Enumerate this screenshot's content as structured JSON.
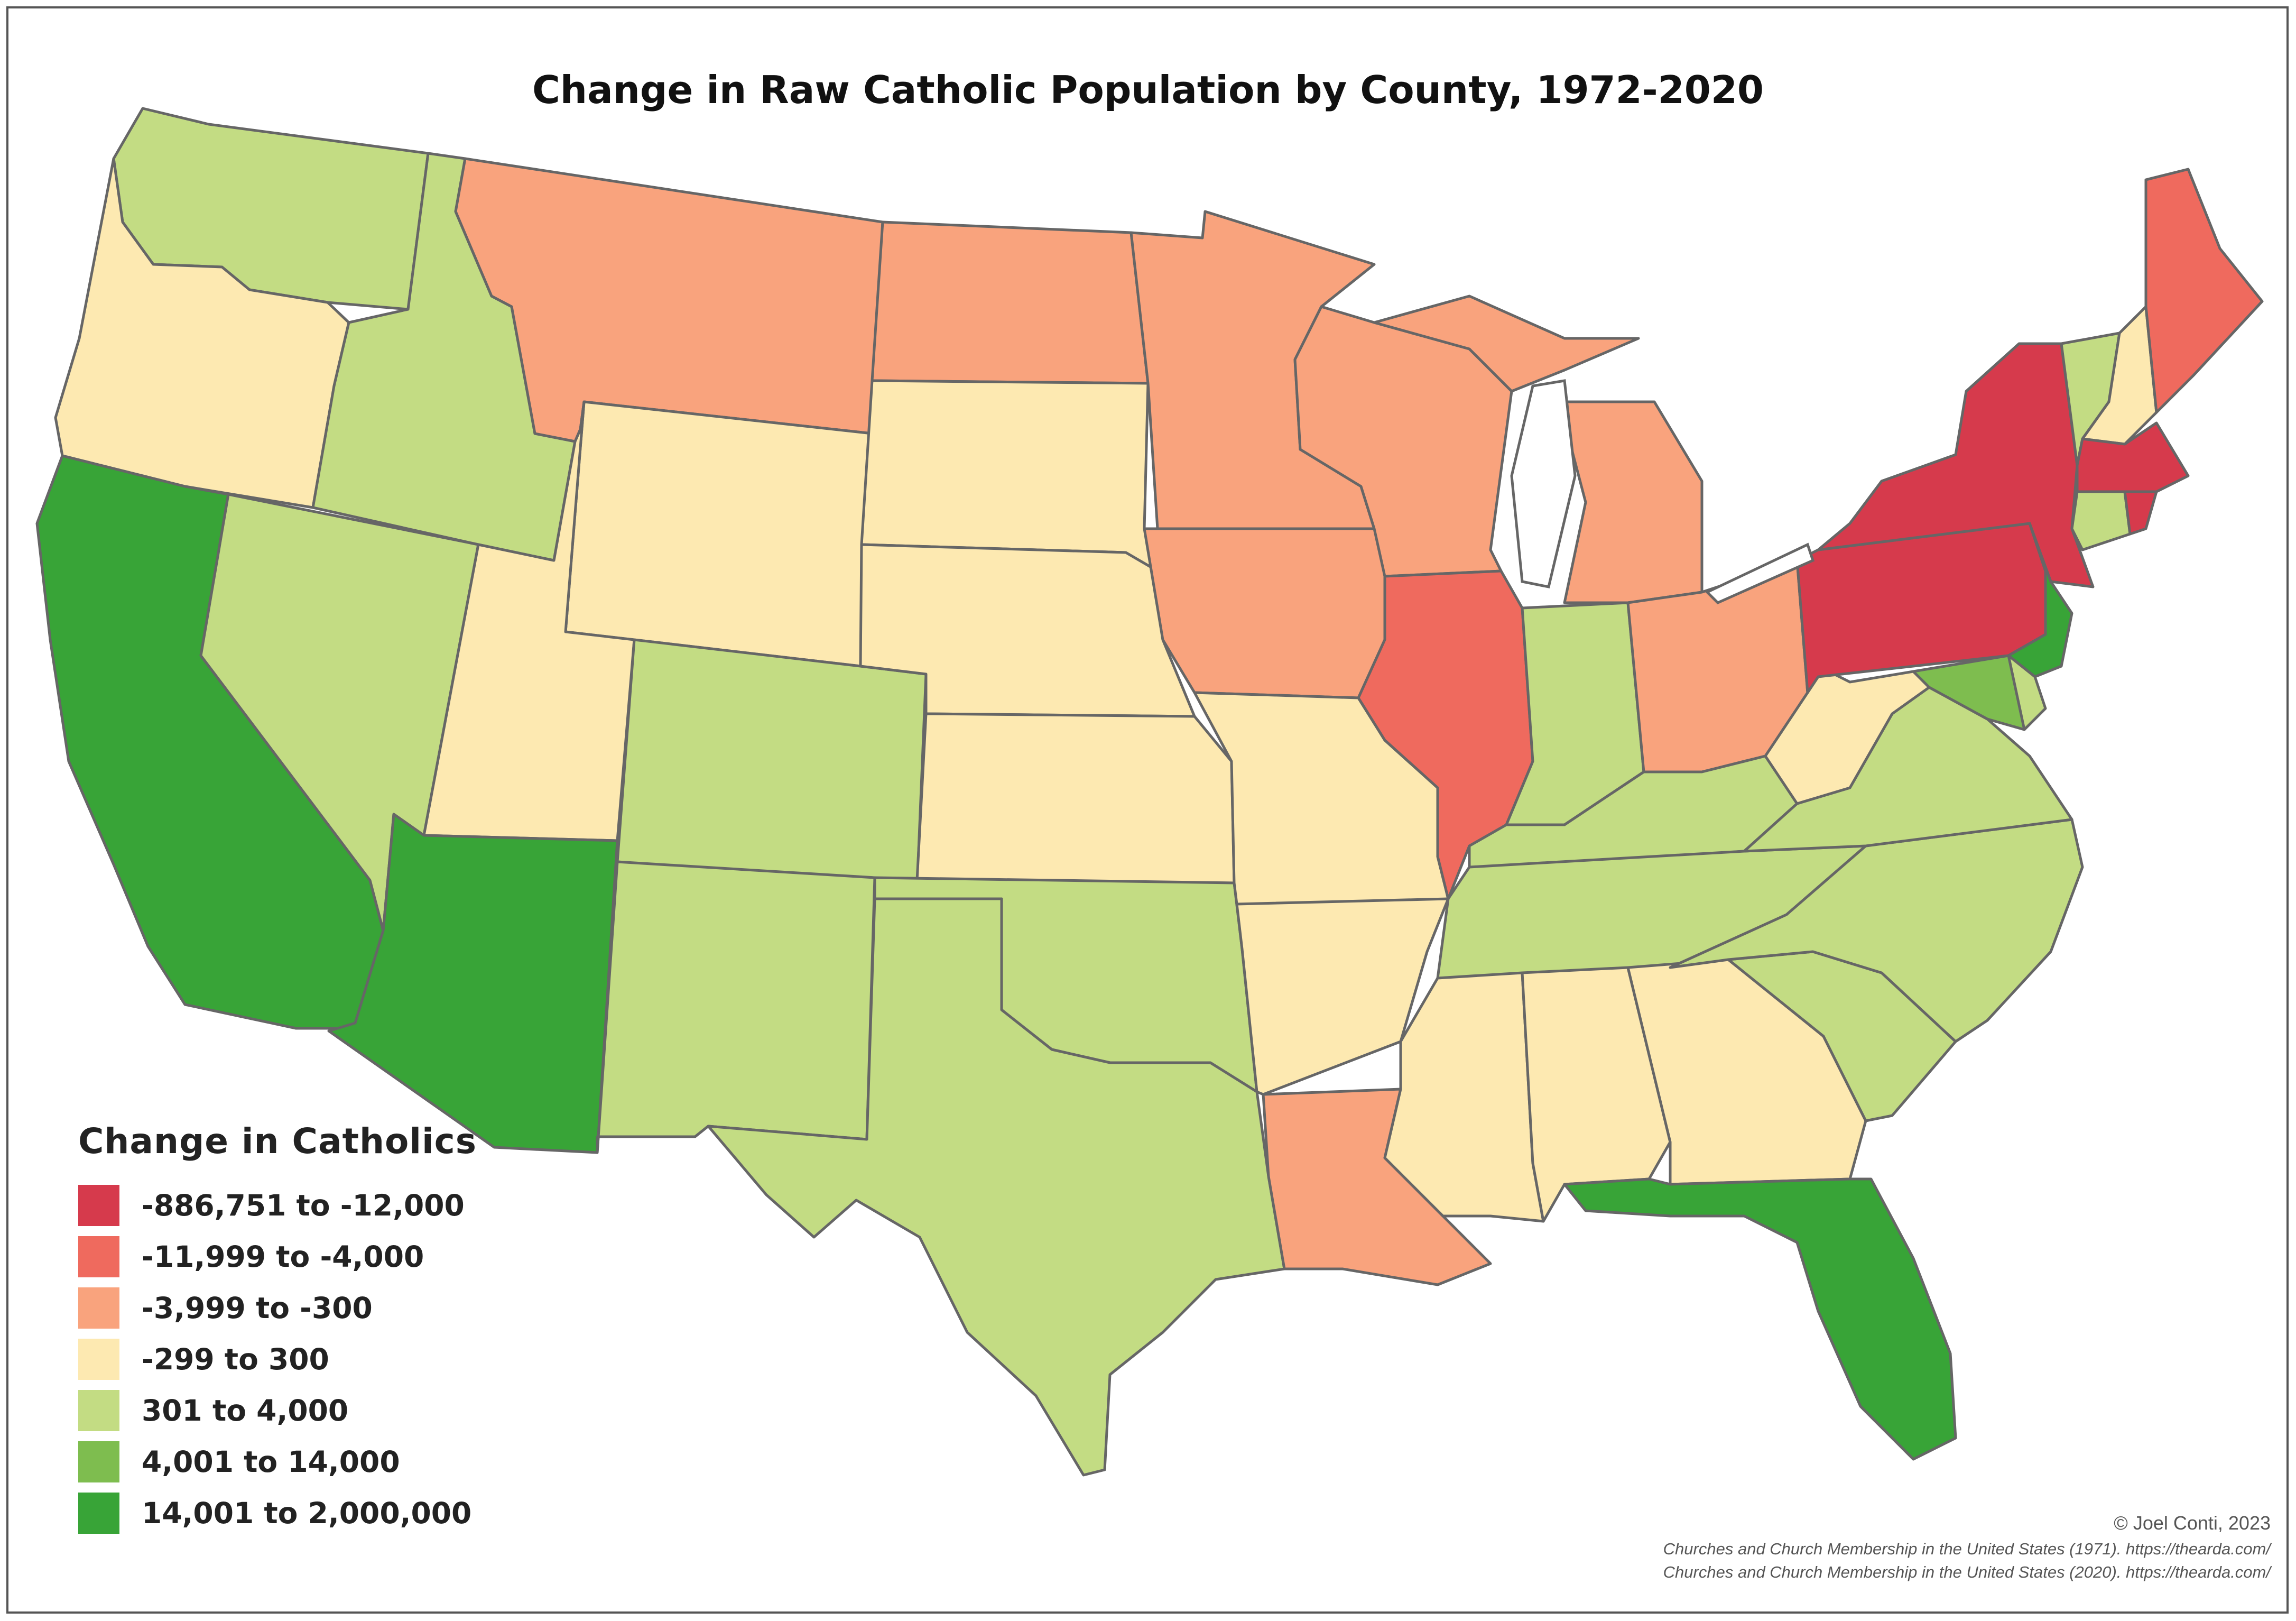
{
  "title": "Change in Raw Catholic Population by County, 1972-2020",
  "legend": {
    "title": "Change in Catholics",
    "items": [
      {
        "label": "-886,751 to -12,000",
        "color": "#d63a4c"
      },
      {
        "label": "-11,999 to -4,000",
        "color": "#ef6a5e"
      },
      {
        "label": "-3,999 to -300",
        "color": "#f9a37d"
      },
      {
        "label": "-299 to 300",
        "color": "#fde9b1"
      },
      {
        "label": "301 to 4,000",
        "color": "#c3dc83"
      },
      {
        "label": "4,001 to 14,000",
        "color": "#7ebd4f"
      },
      {
        "label": "14,001 to 2,000,000",
        "color": "#38a437"
      }
    ]
  },
  "credits": {
    "author": "© Joel Conti, 2023",
    "source_1": "Churches and Church Membership in the United States (1971). https://thearda.com/",
    "source_2": "Churches and Church Membership in the United States (2020). https://thearda.com/"
  },
  "map": {
    "border_color": "#666666",
    "regions": [
      {
        "name": "washington",
        "class": 4
      },
      {
        "name": "oregon",
        "class": 3
      },
      {
        "name": "california",
        "class": 6
      },
      {
        "name": "nevada",
        "class": 4
      },
      {
        "name": "idaho",
        "class": 4
      },
      {
        "name": "montana",
        "class": 2
      },
      {
        "name": "wyoming",
        "class": 3
      },
      {
        "name": "utah",
        "class": 3
      },
      {
        "name": "arizona",
        "class": 6
      },
      {
        "name": "colorado",
        "class": 4
      },
      {
        "name": "new-mexico",
        "class": 4
      },
      {
        "name": "north-dakota",
        "class": 2
      },
      {
        "name": "south-dakota",
        "class": 3
      },
      {
        "name": "nebraska",
        "class": 3
      },
      {
        "name": "kansas",
        "class": 3
      },
      {
        "name": "oklahoma",
        "class": 4
      },
      {
        "name": "texas",
        "class": 4
      },
      {
        "name": "minnesota",
        "class": 2
      },
      {
        "name": "iowa",
        "class": 2
      },
      {
        "name": "missouri",
        "class": 3
      },
      {
        "name": "arkansas",
        "class": 3
      },
      {
        "name": "louisiana",
        "class": 2
      },
      {
        "name": "wisconsin",
        "class": 2
      },
      {
        "name": "illinois",
        "class": 1
      },
      {
        "name": "michigan",
        "class": 2
      },
      {
        "name": "indiana",
        "class": 4
      },
      {
        "name": "ohio",
        "class": 2
      },
      {
        "name": "kentucky",
        "class": 4
      },
      {
        "name": "tennessee",
        "class": 4
      },
      {
        "name": "mississippi",
        "class": 3
      },
      {
        "name": "alabama",
        "class": 3
      },
      {
        "name": "georgia",
        "class": 3
      },
      {
        "name": "florida",
        "class": 6
      },
      {
        "name": "south-carolina",
        "class": 4
      },
      {
        "name": "north-carolina",
        "class": 4
      },
      {
        "name": "virginia",
        "class": 4
      },
      {
        "name": "west-virginia",
        "class": 3
      },
      {
        "name": "pennsylvania",
        "class": 0
      },
      {
        "name": "new-york",
        "class": 0
      },
      {
        "name": "new-jersey",
        "class": 6
      },
      {
        "name": "maryland",
        "class": 5
      },
      {
        "name": "delaware",
        "class": 4
      },
      {
        "name": "vermont",
        "class": 4
      },
      {
        "name": "new-hampshire",
        "class": 3
      },
      {
        "name": "maine",
        "class": 1
      },
      {
        "name": "massachusetts",
        "class": 0
      },
      {
        "name": "connecticut",
        "class": 4
      },
      {
        "name": "rhode-island",
        "class": 0
      }
    ]
  }
}
